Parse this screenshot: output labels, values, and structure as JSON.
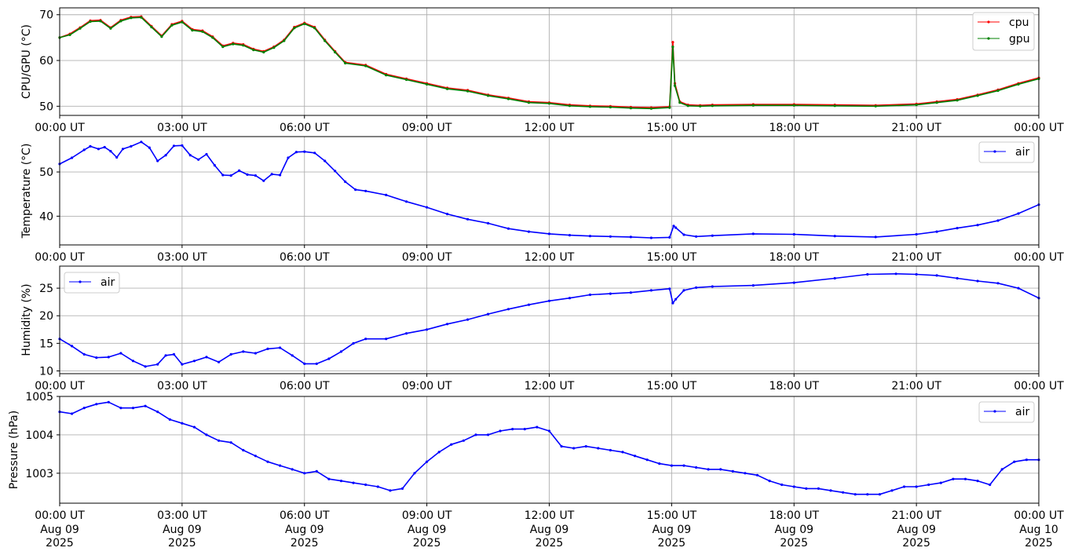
{
  "chart_data": [
    {
      "type": "line",
      "ylabel": "CPU/GPU (°C)",
      "ylim": [
        48,
        71.5
      ],
      "yticks": [
        50,
        60,
        70
      ],
      "legend_position": "upper-right",
      "x_hours_range": [
        0,
        24
      ],
      "x_tick_labels": [
        "00:00 UT",
        "03:00 UT",
        "06:00 UT",
        "09:00 UT",
        "12:00 UT",
        "15:00 UT",
        "18:00 UT",
        "21:00 UT",
        "00:00 UT"
      ],
      "series": [
        {
          "name": "cpu",
          "color": "#ff0000",
          "x_hours": [
            0,
            0.25,
            0.5,
            0.75,
            1.0,
            1.25,
            1.5,
            1.75,
            2.0,
            2.25,
            2.5,
            2.75,
            3.0,
            3.25,
            3.5,
            3.75,
            4.0,
            4.25,
            4.5,
            4.75,
            5.0,
            5.25,
            5.5,
            5.75,
            6.0,
            6.25,
            6.5,
            6.75,
            7.0,
            7.5,
            8.0,
            8.5,
            9.0,
            9.5,
            10.0,
            10.5,
            11.0,
            11.5,
            12.0,
            12.5,
            13.0,
            13.5,
            14.0,
            14.5,
            14.95,
            15.03,
            15.08,
            15.2,
            15.4,
            15.7,
            16.0,
            17.0,
            18.0,
            19.0,
            20.0,
            21.0,
            21.5,
            22.0,
            22.5,
            23.0,
            23.5,
            24.0
          ],
          "values": [
            65,
            65.8,
            67.2,
            68.7,
            68.8,
            67.2,
            68.8,
            69.5,
            69.6,
            67.5,
            65.4,
            67.9,
            68.6,
            66.8,
            66.5,
            65.2,
            63.2,
            63.8,
            63.5,
            62.5,
            62.0,
            63.0,
            64.5,
            67.3,
            68.2,
            67.3,
            64.5,
            62.0,
            59.6,
            59.0,
            57.0,
            56.0,
            55.0,
            54.0,
            53.5,
            52.5,
            51.8,
            51.0,
            50.8,
            50.3,
            50.1,
            50.0,
            49.8,
            49.7,
            49.9,
            64.0,
            55.0,
            51.0,
            50.3,
            50.2,
            50.3,
            50.4,
            50.4,
            50.3,
            50.2,
            50.5,
            51.0,
            51.5,
            52.5,
            53.6,
            55.0,
            56.2
          ]
        },
        {
          "name": "gpu",
          "color": "#008000",
          "x_hours": [
            0,
            0.25,
            0.5,
            0.75,
            1.0,
            1.25,
            1.5,
            1.75,
            2.0,
            2.25,
            2.5,
            2.75,
            3.0,
            3.25,
            3.5,
            3.75,
            4.0,
            4.25,
            4.5,
            4.75,
            5.0,
            5.25,
            5.5,
            5.75,
            6.0,
            6.25,
            6.5,
            6.75,
            7.0,
            7.5,
            8.0,
            8.5,
            9.0,
            9.5,
            10.0,
            10.5,
            11.0,
            11.5,
            12.0,
            12.5,
            13.0,
            13.5,
            14.0,
            14.5,
            14.95,
            15.03,
            15.08,
            15.2,
            15.4,
            15.7,
            16.0,
            17.0,
            18.0,
            19.0,
            20.0,
            21.0,
            21.5,
            22.0,
            22.5,
            23.0,
            23.5,
            24.0
          ],
          "values": [
            65,
            65.6,
            67.0,
            68.5,
            68.6,
            67.0,
            68.6,
            69.3,
            69.4,
            67.3,
            65.2,
            67.7,
            68.4,
            66.6,
            66.3,
            65.0,
            63.0,
            63.6,
            63.3,
            62.3,
            61.8,
            62.8,
            64.3,
            67.1,
            68.0,
            67.1,
            64.3,
            61.8,
            59.4,
            58.8,
            56.8,
            55.8,
            54.8,
            53.8,
            53.3,
            52.3,
            51.6,
            50.8,
            50.6,
            50.1,
            49.9,
            49.8,
            49.6,
            49.5,
            49.7,
            63.0,
            54.5,
            50.8,
            50.1,
            50.0,
            50.1,
            50.2,
            50.2,
            50.1,
            50.0,
            50.3,
            50.8,
            51.3,
            52.3,
            53.4,
            54.8,
            56.0
          ]
        }
      ]
    },
    {
      "type": "line",
      "ylabel": "Temperature (°C)",
      "ylim": [
        33.5,
        58
      ],
      "yticks": [
        40,
        50
      ],
      "legend_position": "upper-right",
      "x_hours_range": [
        0,
        24
      ],
      "x_tick_labels": [
        "00:00 UT",
        "03:00 UT",
        "06:00 UT",
        "09:00 UT",
        "12:00 UT",
        "15:00 UT",
        "18:00 UT",
        "21:00 UT",
        "00:00 UT"
      ],
      "series": [
        {
          "name": "air",
          "color": "#0000ff",
          "x_hours": [
            0,
            0.3,
            0.6,
            0.75,
            0.95,
            1.1,
            1.25,
            1.4,
            1.55,
            1.75,
            2.0,
            2.2,
            2.4,
            2.6,
            2.8,
            3.0,
            3.2,
            3.4,
            3.6,
            3.8,
            4.0,
            4.2,
            4.4,
            4.6,
            4.8,
            5.0,
            5.2,
            5.4,
            5.6,
            5.8,
            6.0,
            6.25,
            6.5,
            6.75,
            7.0,
            7.25,
            7.5,
            8.0,
            8.5,
            9.0,
            9.5,
            10.0,
            10.5,
            11.0,
            11.5,
            12.0,
            12.5,
            13.0,
            13.5,
            14.0,
            14.5,
            14.95,
            15.05,
            15.1,
            15.3,
            15.6,
            16.0,
            17.0,
            18.0,
            19.0,
            20.0,
            21.0,
            21.5,
            22.0,
            22.5,
            23.0,
            23.5,
            24.0
          ],
          "values": [
            51.8,
            53.2,
            55.0,
            55.8,
            55.2,
            55.6,
            54.7,
            53.3,
            55.2,
            55.8,
            56.8,
            55.5,
            52.5,
            53.8,
            55.9,
            56.0,
            53.8,
            52.8,
            54.0,
            51.5,
            49.3,
            49.2,
            50.3,
            49.4,
            49.2,
            48.0,
            49.5,
            49.3,
            53.2,
            54.5,
            54.6,
            54.3,
            52.5,
            50.2,
            47.8,
            46.0,
            45.7,
            44.8,
            43.3,
            42.0,
            40.5,
            39.3,
            38.4,
            37.2,
            36.5,
            36.0,
            35.7,
            35.5,
            35.4,
            35.3,
            35.1,
            35.2,
            37.8,
            37.4,
            35.8,
            35.4,
            35.6,
            36.0,
            35.9,
            35.5,
            35.3,
            35.9,
            36.5,
            37.3,
            38.0,
            39.0,
            40.6,
            42.6
          ]
        }
      ]
    },
    {
      "type": "line",
      "ylabel": "Humidity (%)",
      "ylim": [
        9.5,
        29
      ],
      "yticks": [
        10,
        15,
        20,
        25
      ],
      "legend_position": "upper-left",
      "x_hours_range": [
        0,
        24
      ],
      "x_tick_labels": [
        "00:00 UT",
        "03:00 UT",
        "06:00 UT",
        "09:00 UT",
        "12:00 UT",
        "15:00 UT",
        "18:00 UT",
        "21:00 UT",
        "00:00 UT"
      ],
      "series": [
        {
          "name": "air",
          "color": "#0000ff",
          "x_hours": [
            0,
            0.3,
            0.6,
            0.9,
            1.2,
            1.5,
            1.8,
            2.1,
            2.4,
            2.6,
            2.8,
            3.0,
            3.3,
            3.6,
            3.9,
            4.2,
            4.5,
            4.8,
            5.1,
            5.4,
            5.7,
            6.0,
            6.3,
            6.6,
            6.9,
            7.2,
            7.5,
            8.0,
            8.5,
            9.0,
            9.5,
            10.0,
            10.5,
            11.0,
            11.5,
            12.0,
            12.5,
            13.0,
            13.5,
            14.0,
            14.5,
            14.95,
            15.03,
            15.1,
            15.3,
            15.6,
            16.0,
            17.0,
            18.0,
            19.0,
            19.8,
            20.5,
            21.0,
            21.5,
            22.0,
            22.5,
            23.0,
            23.5,
            24.0
          ],
          "values": [
            15.8,
            14.5,
            13.0,
            12.4,
            12.5,
            13.2,
            11.8,
            10.8,
            11.2,
            12.8,
            13.0,
            11.2,
            11.8,
            12.5,
            11.6,
            13.0,
            13.5,
            13.2,
            14.0,
            14.2,
            12.8,
            11.3,
            11.3,
            12.2,
            13.5,
            15.0,
            15.8,
            15.8,
            16.8,
            17.5,
            18.5,
            19.3,
            20.3,
            21.2,
            22.0,
            22.7,
            23.2,
            23.8,
            24.0,
            24.2,
            24.6,
            24.9,
            22.3,
            23.0,
            24.6,
            25.1,
            25.3,
            25.5,
            26.0,
            26.8,
            27.5,
            27.6,
            27.5,
            27.3,
            26.8,
            26.3,
            25.9,
            25.0,
            23.2
          ]
        }
      ]
    },
    {
      "type": "line",
      "ylabel": "Pressure (hPa)",
      "ylim": [
        1002.22,
        1005.0
      ],
      "yticks": [
        1003,
        1004,
        1005
      ],
      "legend_position": "upper-right",
      "x_hours_range": [
        0,
        24
      ],
      "x_tick_labels": [
        "00:00 UT",
        "03:00 UT",
        "06:00 UT",
        "09:00 UT",
        "12:00 UT",
        "15:00 UT",
        "18:00 UT",
        "21:00 UT",
        "00:00 UT"
      ],
      "x_tick_sublabels": [
        "Aug 09",
        "Aug 09",
        "Aug 09",
        "Aug 09",
        "Aug 09",
        "Aug 09",
        "Aug 09",
        "Aug 09",
        "Aug 10"
      ],
      "x_tick_years": [
        "2025",
        "2025",
        "2025",
        "2025",
        "2025",
        "2025",
        "2025",
        "2025",
        "2025"
      ],
      "series": [
        {
          "name": "air",
          "color": "#0000ff",
          "x_hours": [
            0,
            0.3,
            0.6,
            0.9,
            1.2,
            1.5,
            1.8,
            2.1,
            2.4,
            2.7,
            3.0,
            3.3,
            3.6,
            3.9,
            4.2,
            4.5,
            4.8,
            5.1,
            5.4,
            5.7,
            6.0,
            6.3,
            6.6,
            6.9,
            7.2,
            7.5,
            7.8,
            8.1,
            8.4,
            8.7,
            9.0,
            9.3,
            9.6,
            9.9,
            10.2,
            10.5,
            10.8,
            11.1,
            11.4,
            11.7,
            12.0,
            12.3,
            12.6,
            12.9,
            13.2,
            13.5,
            13.8,
            14.1,
            14.4,
            14.7,
            15.0,
            15.3,
            15.6,
            15.9,
            16.2,
            16.5,
            16.8,
            17.1,
            17.4,
            17.7,
            18.0,
            18.3,
            18.6,
            18.9,
            19.2,
            19.5,
            19.8,
            20.1,
            20.4,
            20.7,
            21.0,
            21.3,
            21.6,
            21.9,
            22.2,
            22.5,
            22.8,
            23.1,
            23.4,
            23.7,
            24.0
          ],
          "values": [
            1004.6,
            1004.55,
            1004.7,
            1004.8,
            1004.85,
            1004.7,
            1004.7,
            1004.75,
            1004.6,
            1004.4,
            1004.3,
            1004.2,
            1004.0,
            1003.85,
            1003.8,
            1003.6,
            1003.45,
            1003.3,
            1003.2,
            1003.1,
            1003.0,
            1003.05,
            1002.85,
            1002.8,
            1002.75,
            1002.7,
            1002.65,
            1002.55,
            1002.6,
            1003.0,
            1003.3,
            1003.55,
            1003.75,
            1003.85,
            1004.0,
            1004.0,
            1004.1,
            1004.15,
            1004.15,
            1004.2,
            1004.1,
            1003.7,
            1003.65,
            1003.7,
            1003.65,
            1003.6,
            1003.55,
            1003.45,
            1003.35,
            1003.25,
            1003.2,
            1003.2,
            1003.15,
            1003.1,
            1003.1,
            1003.05,
            1003.0,
            1002.95,
            1002.8,
            1002.7,
            1002.65,
            1002.6,
            1002.6,
            1002.55,
            1002.5,
            1002.45,
            1002.45,
            1002.45,
            1002.55,
            1002.65,
            1002.65,
            1002.7,
            1002.75,
            1002.85,
            1002.85,
            1002.8,
            1002.7,
            1003.1,
            1003.3,
            1003.35,
            1003.35
          ]
        }
      ]
    }
  ]
}
